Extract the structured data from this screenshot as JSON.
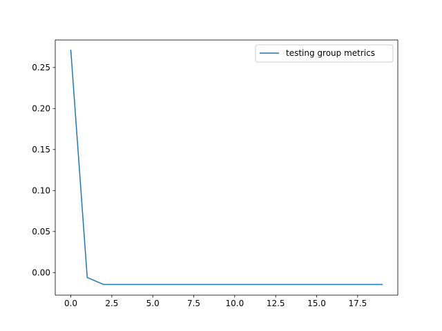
{
  "chart_data": {
    "type": "line",
    "title": "",
    "xlabel": "",
    "ylabel": "",
    "xlim": [
      -0.95,
      19.95
    ],
    "ylim": [
      -0.0275,
      0.2835
    ],
    "xticks": [
      0.0,
      2.5,
      5.0,
      7.5,
      10.0,
      12.5,
      15.0,
      17.5
    ],
    "xtick_labels": [
      "0.0",
      "2.5",
      "5.0",
      "7.5",
      "10.0",
      "12.5",
      "15.0",
      "17.5"
    ],
    "yticks": [
      0.0,
      0.05,
      0.1,
      0.15,
      0.2,
      0.25
    ],
    "ytick_labels": [
      "0.00",
      "0.05",
      "0.10",
      "0.15",
      "0.20",
      "0.25"
    ],
    "grid": false,
    "legend_position": "top-right",
    "series": [
      {
        "name": "testing group metrics",
        "color": "#1f77b4",
        "x": [
          0,
          1,
          2,
          3,
          4,
          5,
          6,
          7,
          8,
          9,
          10,
          11,
          12,
          13,
          14,
          15,
          16,
          17,
          18,
          19
        ],
        "y": [
          0.271,
          -0.006,
          -0.0145,
          -0.0145,
          -0.0145,
          -0.0145,
          -0.0145,
          -0.0145,
          -0.0145,
          -0.0145,
          -0.0145,
          -0.0145,
          -0.0145,
          -0.0145,
          -0.0145,
          -0.0145,
          -0.0145,
          -0.0145,
          -0.0145,
          -0.0145
        ]
      }
    ]
  }
}
